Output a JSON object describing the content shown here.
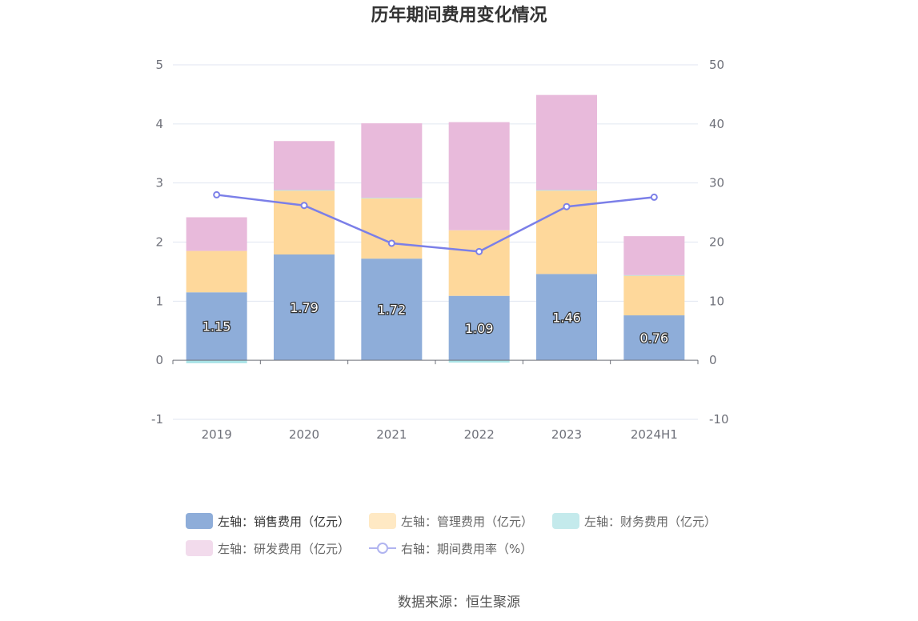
{
  "chart_data": {
    "type": "bar",
    "stacked": true,
    "title": "历年期间费用变化情况",
    "categories": [
      "2019",
      "2020",
      "2021",
      "2022",
      "2023",
      "2024H1"
    ],
    "y_left": {
      "ylim": [
        -1,
        5
      ],
      "ticks": [
        "5",
        "4",
        "3",
        "2",
        "1",
        "0",
        "-1"
      ],
      "tick_values": [
        5,
        4,
        3,
        2,
        1,
        0,
        -1
      ]
    },
    "y_right": {
      "ylim": [
        -10,
        50
      ],
      "ticks": [
        "50",
        "40",
        "30",
        "20",
        "10",
        "0",
        "-10"
      ],
      "tick_values": [
        50,
        40,
        30,
        20,
        10,
        0,
        -10
      ]
    },
    "series": [
      {
        "name": "左轴：销售费用（亿元）",
        "axis": "left",
        "color": "#8eadd9",
        "values": [
          1.15,
          1.79,
          1.72,
          1.09,
          1.46,
          0.76
        ],
        "labels": [
          "1.15",
          "1.79",
          "1.72",
          "1.09",
          "1.46",
          "0.76"
        ]
      },
      {
        "name": "左轴：管理费用（亿元）",
        "axis": "left",
        "color": "#fed89b",
        "values": [
          0.7,
          1.08,
          1.02,
          1.11,
          1.41,
          0.67
        ]
      },
      {
        "name": "左轴：财务费用（亿元）",
        "axis": "left",
        "color": "#a9e3e6",
        "values": [
          -0.05,
          0.01,
          0.01,
          -0.04,
          0.01,
          0.01
        ]
      },
      {
        "name": "左轴：研发费用（亿元）",
        "axis": "left",
        "color": "#e8badb",
        "values": [
          0.57,
          0.83,
          1.26,
          1.83,
          1.61,
          0.66
        ]
      },
      {
        "name": "右轴：期间费用率（%）",
        "axis": "right",
        "type": "line",
        "color": "#7b7fe8",
        "values": [
          28.0,
          26.2,
          19.8,
          18.4,
          26.0,
          27.6
        ]
      }
    ],
    "grid": true,
    "legend_position": "bottom"
  },
  "legend": [
    {
      "label": "左轴：销售费用（亿元）",
      "color": "#8eadd9"
    },
    {
      "label": "左轴：管理费用（亿元）",
      "color": "#ffe9c4"
    },
    {
      "label": "左轴：财务费用（亿元）",
      "color": "#c4eaec"
    },
    {
      "label": "左轴：研发费用（亿元）",
      "color": "#f2dbec"
    },
    {
      "label": "右轴：期间费用率（%）",
      "color": "#b0b4f0"
    }
  ],
  "source": "数据来源：恒生聚源"
}
